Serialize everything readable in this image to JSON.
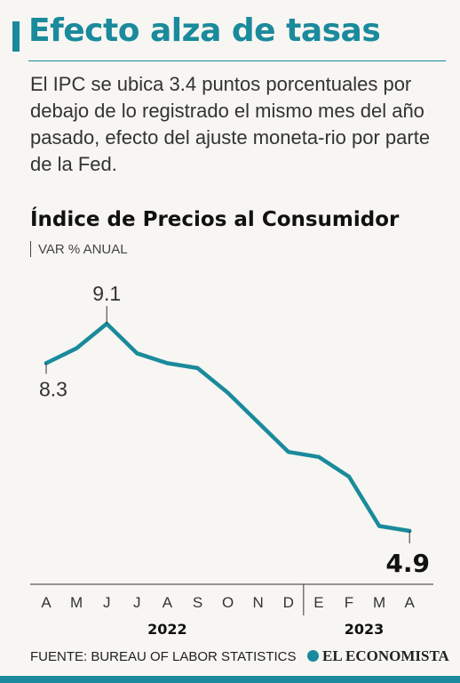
{
  "header": {
    "title": "Efecto alza de tasas",
    "subtitle": "El IPC se ubica 3.4 puntos porcentuales por debajo de lo registrado el mismo mes del año pasado, efecto del ajuste moneta-rio por parte de la Fed."
  },
  "chart_data": {
    "type": "line",
    "title": "Índice de Precios al Consumidor",
    "subtitle": "VAR % ANUAL",
    "x": [
      "A",
      "M",
      "J",
      "J",
      "A",
      "S",
      "O",
      "N",
      "D",
      "E",
      "F",
      "M",
      "A"
    ],
    "years": [
      {
        "label": "2022",
        "months": 9
      },
      {
        "label": "2023",
        "months": 4
      }
    ],
    "series": [
      {
        "values": [
          8.3,
          8.6,
          9.1,
          8.5,
          8.3,
          8.2,
          7.7,
          7.1,
          6.5,
          6.4,
          6.0,
          5.0,
          4.9
        ]
      }
    ],
    "ylim": [
      4.9,
      9.1
    ],
    "annotations": [
      {
        "index": 0,
        "label": "8.3"
      },
      {
        "index": 2,
        "label": "9.1"
      },
      {
        "index": 12,
        "label": "4.9"
      }
    ],
    "color": "#1a8a9c",
    "grid": false
  },
  "footer": {
    "source": "FUENTE: BUREAU OF LABOR STATISTICS",
    "brand": "EL ECONOMISTA"
  }
}
